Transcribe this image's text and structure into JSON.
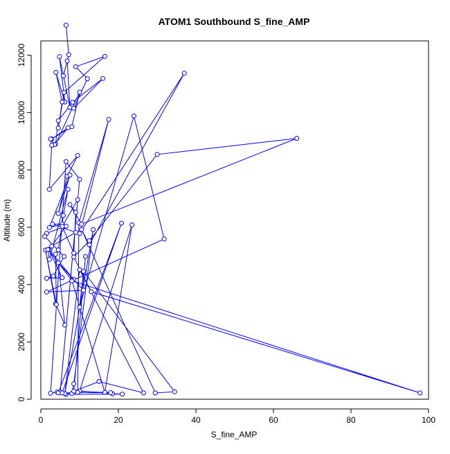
{
  "chart_data": {
    "type": "line",
    "title": "ATOM1 Southbound S_fine_AMP",
    "xlabel": "S_fine_AMP",
    "ylabel": "Altitude (m)",
    "xlim": [
      0,
      100
    ],
    "ylim": [
      0,
      12500
    ],
    "x_ticks": [
      0,
      20,
      40,
      60,
      80,
      100
    ],
    "y_ticks": [
      0,
      2000,
      4000,
      6000,
      8000,
      10000,
      12000
    ],
    "grid": false,
    "legend": "none",
    "color": "#0000ff",
    "series": [
      {
        "marker": "open-circle",
        "x": [
          6.5,
          7.2,
          5.8,
          6.8,
          7.5,
          4.8,
          6.2,
          3.9,
          5.5,
          4.5,
          6.0,
          16.5,
          9.0,
          12.0,
          8.5,
          16.0,
          8.2,
          4.5,
          3.8,
          10.0,
          8.0,
          2.8,
          7.0,
          3.5,
          2.5,
          2.8,
          2.2,
          9.5,
          6.8,
          4.5,
          7.5,
          2.2,
          5.5,
          3.0,
          9.0,
          2.8,
          6.5,
          1.5,
          1.0,
          6.0,
          3.2,
          1.5,
          5.5,
          2.0,
          8.5,
          1.5,
          11.0,
          4.5,
          6.2,
          3.8,
          1.2,
          4.0,
          3.8,
          4.5,
          5.8,
          7.0,
          2.2,
          1.8,
          8.0,
          16.5,
          23.5,
          10.0,
          18.5,
          21.0,
          6.5,
          15.0,
          26.5,
          10.0,
          6.2,
          13.5,
          8.5,
          8.0,
          9.5,
          9.8,
          17.5,
          10.0,
          37.0,
          12.5,
          10.5,
          29.5,
          34.5,
          11.0,
          10.0,
          24.0,
          31.8,
          8.0,
          97.8,
          13.0,
          8.5,
          12.5,
          30.0,
          66.0,
          10.5,
          7.5,
          9.0,
          8.5,
          5.5,
          9.5,
          5.0,
          10.0,
          6.5,
          2.5,
          4.2,
          5.5,
          20.8,
          4.5,
          18.0,
          8.5,
          11.5
        ],
        "y": [
          13050,
          12020,
          11280,
          11800,
          10180,
          11950,
          10370,
          11400,
          10370,
          9460,
          10700,
          11960,
          11600,
          11180,
          10150,
          11190,
          10360,
          9720,
          8900,
          10710,
          9510,
          9080,
          9470,
          8880,
          9080,
          8860,
          7320,
          8500,
          7780,
          6480,
          7820,
          5990,
          6110,
          6110,
          5820,
          5340,
          6040,
          5790,
          5680,
          4980,
          4300,
          4220,
          4240,
          5230,
          4180,
          3740,
          3800,
          4760,
          2590,
          3330,
          5200,
          3300,
          5060,
          5210,
          6410,
          7320,
          4880,
          5220,
          4150,
          240,
          6080,
          290,
          190,
          180,
          170,
          620,
          220,
          4520,
          200,
          5920,
          540,
          200,
          240,
          6150,
          9760,
          5780,
          11370,
          5390,
          5920,
          220,
          260,
          4460,
          3210,
          9880,
          5590,
          4130,
          220,
          3750,
          4960,
          5530,
          8540,
          9100,
          6110,
          6790,
          6520,
          5100,
          6030,
          6960,
          260,
          7670,
          8290,
          210,
          250,
          220,
          6140,
          220,
          230,
          280,
          4980
        ]
      }
    ]
  }
}
